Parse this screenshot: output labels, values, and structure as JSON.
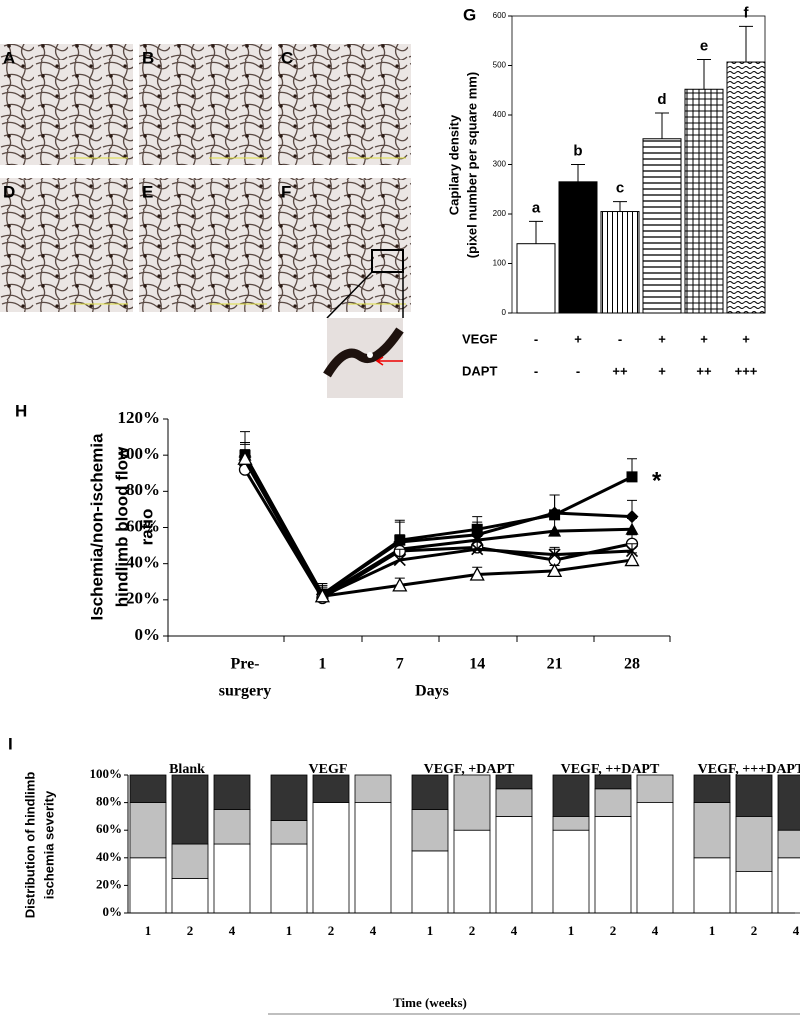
{
  "micrographs": [
    "A",
    "B",
    "C",
    "D",
    "E",
    "F"
  ],
  "chart_data": [
    {
      "type": "bar",
      "panel": "G",
      "ylabel": [
        "Capilary density",
        "(pixel number per square mm)"
      ],
      "values": [
        140,
        265,
        205,
        352,
        452,
        507
      ],
      "errors": [
        45,
        35,
        20,
        52,
        60,
        72
      ],
      "annotations": [
        "a",
        "b",
        "c",
        "d",
        "e",
        "f"
      ],
      "patterns": [
        "white",
        "black",
        "vertical",
        "horizontal",
        "grid",
        "wave"
      ],
      "rows": [
        {
          "label": "VEGF",
          "values": [
            "-",
            "+",
            "-",
            "+",
            "+",
            "+"
          ]
        },
        {
          "label": "DAPT",
          "values": [
            "-",
            "-",
            "++",
            "+",
            "++",
            "+++"
          ]
        }
      ],
      "ylim": [
        0,
        600
      ],
      "yticks": [
        0,
        100,
        200,
        300,
        400,
        500,
        600
      ]
    },
    {
      "type": "line",
      "panel": "H",
      "ylabel": [
        "Ischemia/non-ischemia",
        "hindlimb blood flow",
        "ratio"
      ],
      "xlabel": "Days",
      "categories": [
        [
          "Pre-",
          "surgery"
        ],
        "1",
        "7",
        "14",
        "21",
        "28"
      ],
      "annotation": "*",
      "series": [
        {
          "marker": "square",
          "values": [
            100,
            23,
            53,
            59,
            67,
            88
          ],
          "errors": [
            13,
            6,
            11,
            7,
            11,
            10
          ]
        },
        {
          "marker": "diamond",
          "values": [
            99,
            23,
            52,
            56,
            68,
            66
          ],
          "errors": [
            8,
            5,
            11,
            7,
            10,
            9
          ]
        },
        {
          "marker": "triangle",
          "values": [
            100,
            22,
            48,
            53,
            58,
            59
          ],
          "errors": [
            6,
            5,
            8,
            6,
            8,
            6
          ]
        },
        {
          "marker": "circle-open",
          "values": [
            92,
            21,
            47,
            49,
            42,
            51
          ],
          "errors": [
            5,
            4,
            8,
            6,
            6,
            5
          ]
        },
        {
          "marker": "cross",
          "values": [
            97,
            22,
            42,
            48,
            45,
            47
          ],
          "errors": [
            6,
            4,
            6,
            5,
            4,
            4
          ]
        },
        {
          "marker": "triangle-open",
          "values": [
            98,
            22,
            28,
            34,
            36,
            42
          ],
          "errors": [
            5,
            4,
            4,
            4,
            3,
            4
          ]
        }
      ],
      "ylim": [
        0,
        120
      ],
      "yticks": [
        {
          "value": 0,
          "label": "0%"
        },
        {
          "value": 20,
          "label": "20%"
        },
        {
          "value": 40,
          "label": "40%"
        },
        {
          "value": 60,
          "label": "60%"
        },
        {
          "value": 80,
          "label": "80%"
        },
        {
          "value": 100,
          "label": "100%"
        },
        {
          "value": 120,
          "label": "120%"
        }
      ]
    },
    {
      "type": "stacked-bar",
      "panel": "I",
      "ylabel": [
        "Distribution of hindlimb",
        "ischemia severity"
      ],
      "xlabel": "Time (weeks)",
      "groups": [
        "Blank",
        "VEGF",
        "VEGF, +DAPT",
        "VEGF, ++DAPT",
        "VEGF, +++DAPT"
      ],
      "categories": [
        "1",
        "2",
        "4",
        "1",
        "2",
        "4",
        "1",
        "2",
        "4",
        "1",
        "2",
        "4",
        "1",
        "2",
        "4"
      ],
      "series": [
        {
          "color": "#ffffff",
          "values": [
            40,
            25,
            50,
            50,
            80,
            80,
            45,
            60,
            70,
            60,
            70,
            80,
            40,
            30,
            40
          ]
        },
        {
          "color": "#c0c0c0",
          "values": [
            40,
            25,
            25,
            17,
            0,
            20,
            30,
            40,
            20,
            10,
            20,
            20,
            40,
            40,
            20
          ]
        },
        {
          "color": "#333333",
          "values": [
            20,
            50,
            25,
            33,
            20,
            0,
            25,
            0,
            10,
            30,
            10,
            0,
            20,
            30,
            40
          ]
        }
      ],
      "ylim": [
        0,
        100
      ],
      "yticks": [
        {
          "value": 0,
          "label": "0%"
        },
        {
          "value": 20,
          "label": "20%"
        },
        {
          "value": 40,
          "label": "40%"
        },
        {
          "value": 60,
          "label": "60%"
        },
        {
          "value": 80,
          "label": "80%"
        },
        {
          "value": 100,
          "label": "100%"
        }
      ]
    }
  ]
}
